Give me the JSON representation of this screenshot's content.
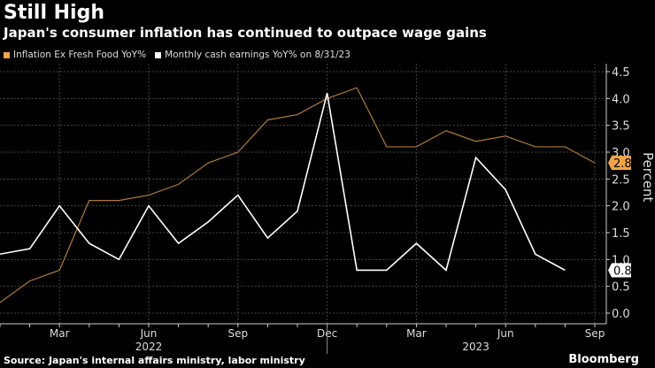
{
  "header": {
    "title": "Still High",
    "subtitle": "Japan's consumer inflation has continued to outpace wage gains"
  },
  "footer": {
    "source": "Source: Japan's internal affairs ministry, labor ministry",
    "brand": "Bloomberg"
  },
  "chart_data": {
    "type": "line",
    "x": [
      "2022-01",
      "2022-02",
      "2022-03",
      "2022-04",
      "2022-05",
      "2022-06",
      "2022-07",
      "2022-08",
      "2022-09",
      "2022-10",
      "2022-11",
      "2022-12",
      "2023-01",
      "2023-02",
      "2023-03",
      "2023-04",
      "2023-05",
      "2023-06",
      "2023-07",
      "2023-08",
      "2023-09"
    ],
    "xticks": [
      {
        "label": "Mar",
        "x": "2022-03"
      },
      {
        "label": "Jun",
        "x": "2022-06"
      },
      {
        "label": "Sep",
        "x": "2022-09"
      },
      {
        "label": "Dec",
        "x": "2022-12"
      },
      {
        "label": "Mar",
        "x": "2023-03"
      },
      {
        "label": "Jun",
        "x": "2023-06"
      },
      {
        "label": "Sep",
        "x": "2023-09"
      }
    ],
    "year_labels": [
      {
        "label": "2022",
        "x": "2022-06"
      },
      {
        "label": "2023",
        "x": "2023-05"
      }
    ],
    "ylabel": "Percent",
    "ylim": [
      0,
      4.5
    ],
    "yticks": [
      "0.0",
      "0.5",
      "1.0",
      "1.5",
      "2.0",
      "2.5",
      "3.0",
      "3.5",
      "4.0",
      "4.5"
    ],
    "grid": true,
    "legend_placement": "top-left",
    "series": [
      {
        "name": "Inflation Ex Fresh Food YoY%",
        "color": "#b07a3c",
        "legend_color": "#f0a44a",
        "last_label": "2.8",
        "values": [
          0.2,
          0.6,
          0.8,
          2.1,
          2.1,
          2.2,
          2.4,
          2.8,
          3.0,
          3.6,
          3.7,
          4.0,
          4.2,
          3.1,
          3.1,
          3.4,
          3.2,
          3.3,
          3.1,
          3.1,
          2.8
        ]
      },
      {
        "name": "Monthly cash earnings YoY% on 8/31/23",
        "color": "#ffffff",
        "legend_color": "#ffffff",
        "last_label": "0.8",
        "values": [
          1.1,
          1.2,
          2.0,
          1.3,
          1.0,
          2.0,
          1.3,
          1.7,
          2.2,
          1.4,
          1.9,
          4.1,
          0.8,
          0.8,
          1.3,
          0.8,
          2.9,
          2.3,
          1.1,
          0.8,
          null
        ]
      }
    ]
  }
}
